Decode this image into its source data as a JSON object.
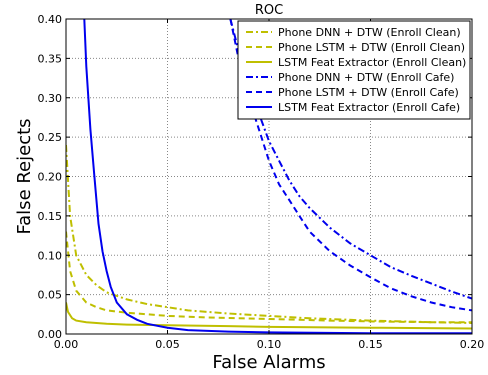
{
  "chart_data": {
    "type": "line",
    "title": "ROC",
    "xlabel": "False Alarms",
    "ylabel": "False Rejects",
    "xlim": [
      0.0,
      0.2
    ],
    "ylim": [
      0.0,
      0.4
    ],
    "xticks": [
      "0.00",
      "0.05",
      "0.10",
      "0.15",
      "0.20"
    ],
    "yticks": [
      "0.00",
      "0.05",
      "0.10",
      "0.15",
      "0.20",
      "0.25",
      "0.30",
      "0.35",
      "0.40"
    ],
    "grid": true,
    "legend_position": "top-right",
    "series": [
      {
        "name": "Phone DNN + DTW (Enroll Clean)",
        "color": "#bfbf00",
        "style": "dashdot",
        "x": [
          0.0,
          0.002,
          0.005,
          0.01,
          0.015,
          0.02,
          0.03,
          0.04,
          0.05,
          0.06,
          0.08,
          0.1,
          0.12,
          0.15,
          0.18,
          0.2
        ],
        "y": [
          0.24,
          0.15,
          0.1,
          0.075,
          0.062,
          0.053,
          0.044,
          0.038,
          0.034,
          0.03,
          0.026,
          0.023,
          0.02,
          0.017,
          0.015,
          0.014
        ]
      },
      {
        "name": "Phone LSTM + DTW (Enroll Clean)",
        "color": "#bfbf00",
        "style": "dashed",
        "x": [
          0.0,
          0.002,
          0.005,
          0.01,
          0.015,
          0.02,
          0.03,
          0.04,
          0.05,
          0.07,
          0.1,
          0.13,
          0.15,
          0.18,
          0.2
        ],
        "y": [
          0.13,
          0.08,
          0.055,
          0.04,
          0.034,
          0.03,
          0.027,
          0.025,
          0.023,
          0.021,
          0.019,
          0.017,
          0.016,
          0.015,
          0.015
        ]
      },
      {
        "name": "LSTM Feat Extractor (Enroll Clean)",
        "color": "#bfbf00",
        "style": "solid",
        "x": [
          0.0,
          0.001,
          0.003,
          0.005,
          0.01,
          0.015,
          0.02,
          0.03,
          0.05,
          0.08,
          0.1,
          0.15,
          0.2
        ],
        "y": [
          0.04,
          0.028,
          0.02,
          0.017,
          0.015,
          0.014,
          0.013,
          0.012,
          0.011,
          0.01,
          0.009,
          0.008,
          0.007
        ]
      },
      {
        "name": "Phone DNN + DTW (Enroll Cafe)",
        "color": "#0000ee",
        "style": "dashdot",
        "x": [
          0.081,
          0.085,
          0.09,
          0.095,
          0.1,
          0.105,
          0.11,
          0.115,
          0.12,
          0.13,
          0.14,
          0.15,
          0.16,
          0.17,
          0.18,
          0.19,
          0.2
        ],
        "y": [
          0.4,
          0.36,
          0.315,
          0.28,
          0.245,
          0.22,
          0.195,
          0.175,
          0.16,
          0.135,
          0.115,
          0.1,
          0.085,
          0.074,
          0.064,
          0.054,
          0.045
        ]
      },
      {
        "name": "Phone LSTM + DTW (Enroll Cafe)",
        "color": "#0000ee",
        "style": "dashed",
        "x": [
          0.081,
          0.085,
          0.09,
          0.095,
          0.1,
          0.105,
          0.11,
          0.115,
          0.12,
          0.13,
          0.14,
          0.15,
          0.16,
          0.17,
          0.18,
          0.19,
          0.2
        ],
        "y": [
          0.4,
          0.35,
          0.3,
          0.26,
          0.22,
          0.19,
          0.17,
          0.15,
          0.13,
          0.105,
          0.087,
          0.072,
          0.058,
          0.048,
          0.04,
          0.034,
          0.03
        ]
      },
      {
        "name": "LSTM Feat Extractor (Enroll Cafe)",
        "color": "#0000ee",
        "style": "solid",
        "x": [
          0.009,
          0.01,
          0.012,
          0.014,
          0.016,
          0.018,
          0.02,
          0.022,
          0.025,
          0.03,
          0.035,
          0.04,
          0.05,
          0.06,
          0.08,
          0.1,
          0.15,
          0.2
        ],
        "y": [
          0.4,
          0.34,
          0.26,
          0.2,
          0.14,
          0.105,
          0.08,
          0.06,
          0.04,
          0.025,
          0.018,
          0.013,
          0.008,
          0.005,
          0.003,
          0.002,
          0.001,
          0.001
        ]
      }
    ]
  }
}
